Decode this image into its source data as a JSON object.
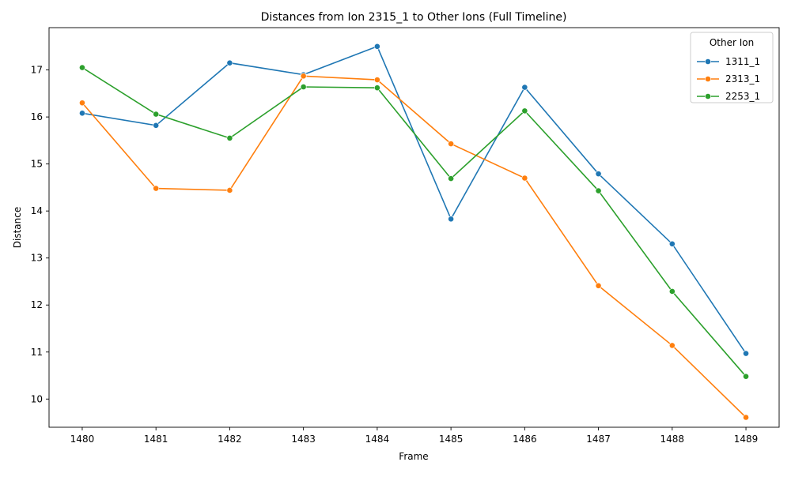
{
  "chart_data": {
    "type": "line",
    "title": "Distances from Ion 2315_1 to Other Ions (Full Timeline)",
    "xlabel": "Frame",
    "ylabel": "Distance",
    "x": [
      1480,
      1481,
      1482,
      1483,
      1484,
      1485,
      1486,
      1487,
      1488,
      1489
    ],
    "xlim": [
      1479.55,
      1489.45
    ],
    "ylim": [
      9.4,
      17.9
    ],
    "yticks": [
      10,
      11,
      12,
      13,
      14,
      15,
      16,
      17
    ],
    "grid": false,
    "legend": {
      "title": "Other Ion",
      "placement": "top-right"
    },
    "series": [
      {
        "name": "1311_1",
        "color": "#1f77b4",
        "values": [
          16.08,
          15.82,
          17.15,
          16.9,
          17.5,
          13.83,
          16.63,
          14.79,
          13.3,
          10.97
        ]
      },
      {
        "name": "2313_1",
        "color": "#ff7f0e",
        "values": [
          16.3,
          14.48,
          14.44,
          16.87,
          16.79,
          15.43,
          14.7,
          12.41,
          11.14,
          9.61
        ]
      },
      {
        "name": "2253_1",
        "color": "#2ca02c",
        "values": [
          17.05,
          16.06,
          15.55,
          16.64,
          16.62,
          14.69,
          16.13,
          14.43,
          12.29,
          10.48
        ]
      }
    ]
  }
}
